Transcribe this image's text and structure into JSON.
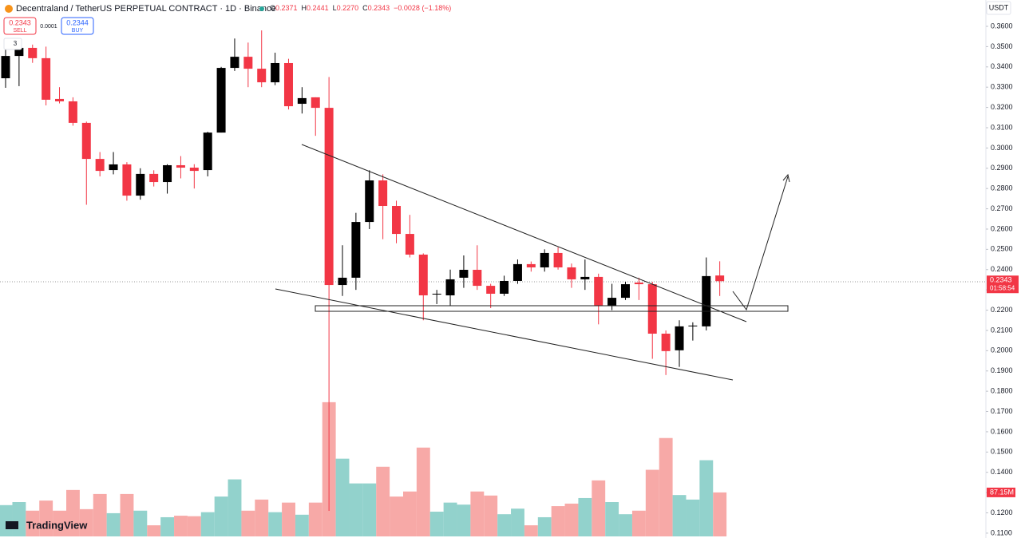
{
  "chart_data": {
    "type": "candlestick",
    "title": "Decentraland / TetherUS PERPETUAL CONTRACT · 1D · Binance",
    "ohlc_header": [
      {
        "key": "O",
        "value": "0.2371"
      },
      {
        "key": "H",
        "value": "0.2441"
      },
      {
        "key": "L",
        "value": "0.2270"
      },
      {
        "key": "C",
        "value": "0.2343"
      }
    ],
    "change": "−0.0028 (−1.18%)",
    "trade_panel": {
      "sell_price": "0.2343",
      "sell_label": "SELL",
      "spread": "0.0001",
      "buy_price": "0.2344",
      "buy_label": "BUY"
    },
    "indicator_count": "3",
    "currency": "USDT",
    "brand": "TradingView",
    "last_price_label": "0.2343",
    "countdown": "01:58:54",
    "volume_label": "87.15M",
    "up_color": "#000000",
    "down_color": "#f23645",
    "volume_up_color": "#92d2cc",
    "volume_down_color": "#f7a9a7",
    "open": [
      0.3344,
      0.3454,
      0.3494,
      0.3443,
      0.3242,
      0.323,
      0.3124,
      0.2946,
      0.2891,
      0.2919,
      0.2765,
      0.2872,
      0.2832,
      0.2915,
      0.2903,
      0.2891,
      0.3076,
      0.3395,
      0.345,
      0.3391,
      0.3324,
      0.3419,
      0.3218,
      0.325,
      0.3198,
      0.2324,
      0.236,
      0.2635,
      0.284,
      0.2714,
      0.2576,
      0.2474,
      0.2277,
      0.2273,
      0.236,
      0.2399,
      0.232,
      0.2281,
      0.2344,
      0.2427,
      0.2411,
      0.2482,
      0.2411,
      0.2352,
      0.2364,
      0.2222,
      0.2261,
      0.2336,
      0.2328,
      0.2084,
      0.2002,
      0.212,
      0.212,
      0.2371
    ],
    "high": [
      0.3494,
      0.353,
      0.351,
      0.35,
      0.33,
      0.325,
      0.313,
      0.298,
      0.298,
      0.293,
      0.29,
      0.289,
      0.292,
      0.296,
      0.292,
      0.308,
      0.34,
      0.354,
      0.352,
      0.358,
      0.347,
      0.344,
      0.33,
      0.325,
      0.335,
      0.252,
      0.268,
      0.289,
      0.287,
      0.274,
      0.267,
      0.248,
      0.23,
      0.24,
      0.247,
      0.252,
      0.233,
      0.237,
      0.245,
      0.244,
      0.25,
      0.251,
      0.243,
      0.245,
      0.238,
      0.233,
      0.234,
      0.236,
      0.234,
      0.21,
      0.215,
      0.214,
      0.246,
      0.2441
    ],
    "low": [
      0.3297,
      0.3305,
      0.342,
      0.321,
      0.322,
      0.311,
      0.272,
      0.286,
      0.287,
      0.274,
      0.2745,
      0.281,
      0.2775,
      0.285,
      0.28,
      0.286,
      0.3076,
      0.338,
      0.33,
      0.33,
      0.331,
      0.319,
      0.317,
      0.306,
      0.121,
      0.227,
      0.23,
      0.26,
      0.255,
      0.253,
      0.246,
      0.215,
      0.223,
      0.222,
      0.231,
      0.23,
      0.221,
      0.227,
      0.233,
      0.239,
      0.239,
      0.24,
      0.231,
      0.23,
      0.213,
      0.22,
      0.225,
      0.225,
      0.196,
      0.188,
      0.192,
      0.205,
      0.21,
      0.227
    ],
    "close": [
      0.3454,
      0.3494,
      0.3443,
      0.3238,
      0.323,
      0.3124,
      0.2946,
      0.2887,
      0.2919,
      0.2765,
      0.2872,
      0.2832,
      0.2915,
      0.2903,
      0.2887,
      0.3076,
      0.3395,
      0.345,
      0.3391,
      0.3324,
      0.3419,
      0.3206,
      0.3246,
      0.3198,
      0.2324,
      0.236,
      0.2635,
      0.284,
      0.2714,
      0.2576,
      0.2474,
      0.2273,
      0.2281,
      0.2352,
      0.2399,
      0.232,
      0.2281,
      0.2344,
      0.2427,
      0.2411,
      0.2482,
      0.2411,
      0.2352,
      0.2364,
      0.2222,
      0.2261,
      0.2328,
      0.2328,
      0.2084,
      0.1998,
      0.212,
      0.2124,
      0.2368,
      0.2343
    ],
    "volume": [
      62,
      68,
      51,
      71,
      51,
      92,
      54,
      84,
      46,
      84,
      51,
      22,
      38,
      41,
      40,
      48,
      79,
      113,
      51,
      73,
      48,
      67,
      43,
      67,
      266,
      154,
      105,
      105,
      138,
      79,
      89,
      176,
      49,
      67,
      63,
      89,
      81,
      44,
      55,
      22,
      38,
      60,
      65,
      76,
      111,
      68,
      44,
      51,
      132,
      195,
      82,
      73,
      151,
      87.15
    ],
    "ylim": [
      0.1076,
      0.373
    ],
    "vlim": [
      0,
      280
    ],
    "yticks": [
      {
        "value": 0.36,
        "label": "0.3600"
      },
      {
        "value": 0.35,
        "label": "0.3500"
      },
      {
        "value": 0.34,
        "label": "0.3400"
      },
      {
        "value": 0.33,
        "label": "0.3300"
      },
      {
        "value": 0.32,
        "label": "0.3200"
      },
      {
        "value": 0.31,
        "label": "0.3100"
      },
      {
        "value": 0.3,
        "label": "0.3000"
      },
      {
        "value": 0.29,
        "label": "0.2900"
      },
      {
        "value": 0.28,
        "label": "0.2800"
      },
      {
        "value": 0.27,
        "label": "0.2700"
      },
      {
        "value": 0.26,
        "label": "0.2600"
      },
      {
        "value": 0.25,
        "label": "0.2500"
      },
      {
        "value": 0.24,
        "label": "0.2400"
      },
      {
        "value": 0.23,
        "label": "0.2300"
      },
      {
        "value": 0.22,
        "label": "0.2200"
      },
      {
        "value": 0.21,
        "label": "0.2100"
      },
      {
        "value": 0.2,
        "label": "0.2000"
      },
      {
        "value": 0.19,
        "label": "0.1900"
      },
      {
        "value": 0.18,
        "label": "0.1800"
      },
      {
        "value": 0.17,
        "label": "0.1700"
      },
      {
        "value": 0.16,
        "label": "0.1600"
      },
      {
        "value": 0.15,
        "label": "0.1500"
      },
      {
        "value": 0.14,
        "label": "0.1400"
      },
      {
        "value": 0.13,
        "label": "0.1300"
      },
      {
        "value": 0.12,
        "label": "0.1200"
      },
      {
        "value": 0.11,
        "label": "0.1100"
      }
    ]
  }
}
